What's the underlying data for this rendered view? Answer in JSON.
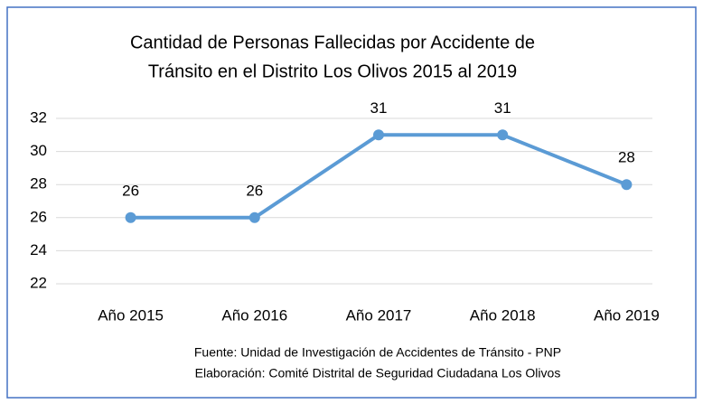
{
  "chart_data": {
    "type": "line",
    "title": [
      "Cantidad de Personas Fallecidas por Accidente de",
      "Tránsito en el Distrito Los Olivos 2015 al 2019"
    ],
    "categories": [
      "Año 2015",
      "Año 2016",
      "Año 2017",
      "Año 2018",
      "Año 2019"
    ],
    "values": [
      26,
      26,
      31,
      31,
      28
    ],
    "color": "#5b9bd5",
    "ylim": [
      22,
      32
    ],
    "yticks": [
      22,
      24,
      26,
      28,
      30,
      32
    ],
    "grid": true,
    "annotations": [
      "Fuente: Unidad de Investigación de Accidentes de Tránsito - PNP",
      "Elaboración: Comité Distrital de Seguridad Ciudadana Los Olivos"
    ]
  }
}
